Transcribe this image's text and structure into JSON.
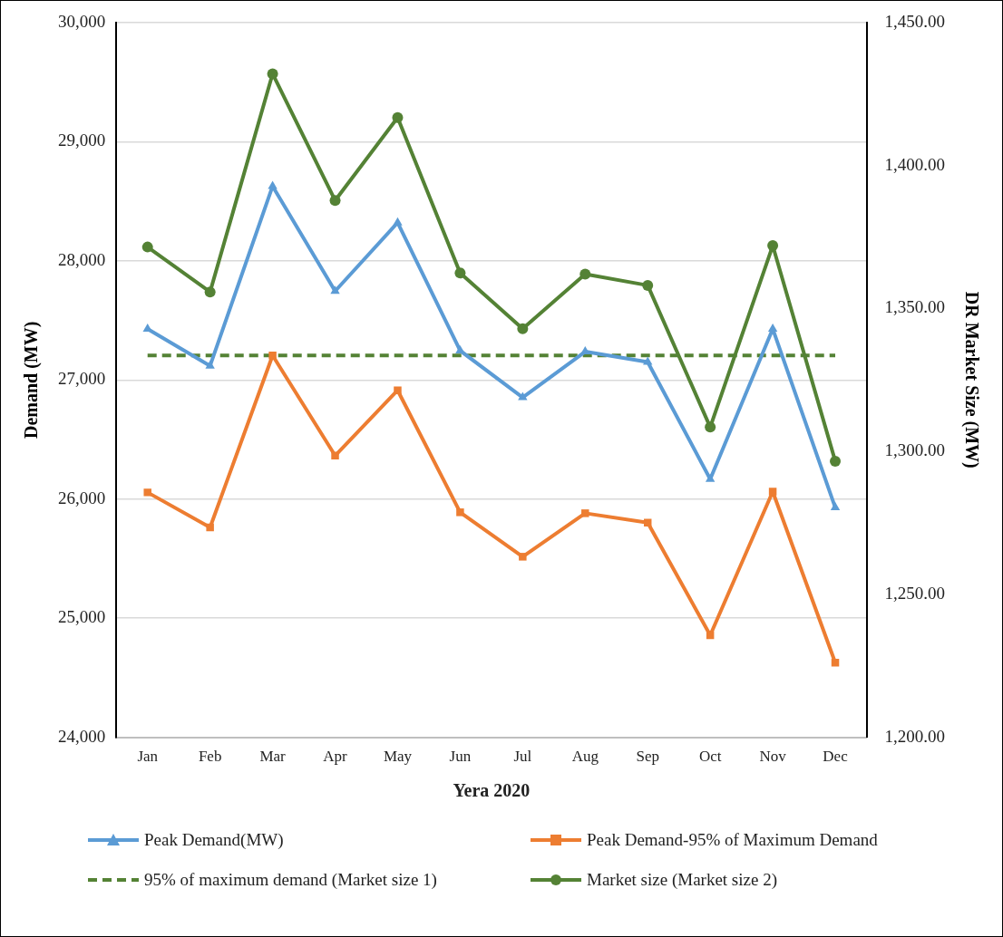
{
  "chart_data": {
    "type": "line",
    "xlabel": "Yera 2020",
    "ylabel": "Demand (MW)",
    "y2label": "DR Market Size (MW)",
    "categories": [
      "Jan",
      "Feb",
      "Mar",
      "Apr",
      "May",
      "Jun",
      "Jul",
      "Aug",
      "Sep",
      "Oct",
      "Nov",
      "Dec"
    ],
    "series": [
      {
        "name": "Peak Demand(MW)",
        "color": "#5b9bd5",
        "marker": "triangle",
        "line_style": "solid",
        "values": [
          27429,
          27119,
          28627,
          27746,
          28321,
          27246,
          26853,
          27238,
          27151,
          26167,
          27429,
          25929
        ]
      },
      {
        "name": "Peak Demand-95% of Maximum Demand",
        "color": "#ed7d31",
        "marker": "square",
        "line_style": "solid",
        "values": [
          26056,
          25762,
          27206,
          26365,
          26913,
          25889,
          25516,
          25881,
          25802,
          24857,
          26063,
          24627
        ]
      },
      {
        "name": "95% of maximum demand (Market size 1)",
        "color": "#548235",
        "marker": "none",
        "line_style": "dashed",
        "values": [
          27206,
          27206,
          27206,
          27206,
          27206,
          27206,
          27206,
          27206,
          27206,
          27206,
          27206,
          27206
        ]
      },
      {
        "name": "Market size (Market size 2)",
        "color": "#548235",
        "marker": "circle",
        "line_style": "solid",
        "axis": "y2",
        "values": [
          1371.5,
          1355.8,
          1432.1,
          1387.8,
          1416.8,
          1362.4,
          1342.9,
          1362.0,
          1358.1,
          1308.5,
          1372.0,
          1296.6
        ]
      }
    ],
    "ylim": [
      24000,
      30000
    ],
    "yticks": [
      {
        "value": 24000,
        "label": "24,000"
      },
      {
        "value": 25000,
        "label": "25,000"
      },
      {
        "value": 26000,
        "label": "26,000"
      },
      {
        "value": 27000,
        "label": "27,000"
      },
      {
        "value": 28000,
        "label": "28,000"
      },
      {
        "value": 29000,
        "label": "29,000"
      },
      {
        "value": 30000,
        "label": "30,000"
      }
    ],
    "y2lim": [
      1200,
      1450
    ],
    "y2ticks": [
      {
        "value": 1200,
        "label": "1,200.00"
      },
      {
        "value": 1250,
        "label": "1,250.00"
      },
      {
        "value": 1300,
        "label": "1,300.00"
      },
      {
        "value": 1350,
        "label": "1,350.00"
      },
      {
        "value": 1400,
        "label": "1,400.00"
      },
      {
        "value": 1450,
        "label": "1,450.00"
      }
    ],
    "grid": "y",
    "legend": "bottom"
  }
}
